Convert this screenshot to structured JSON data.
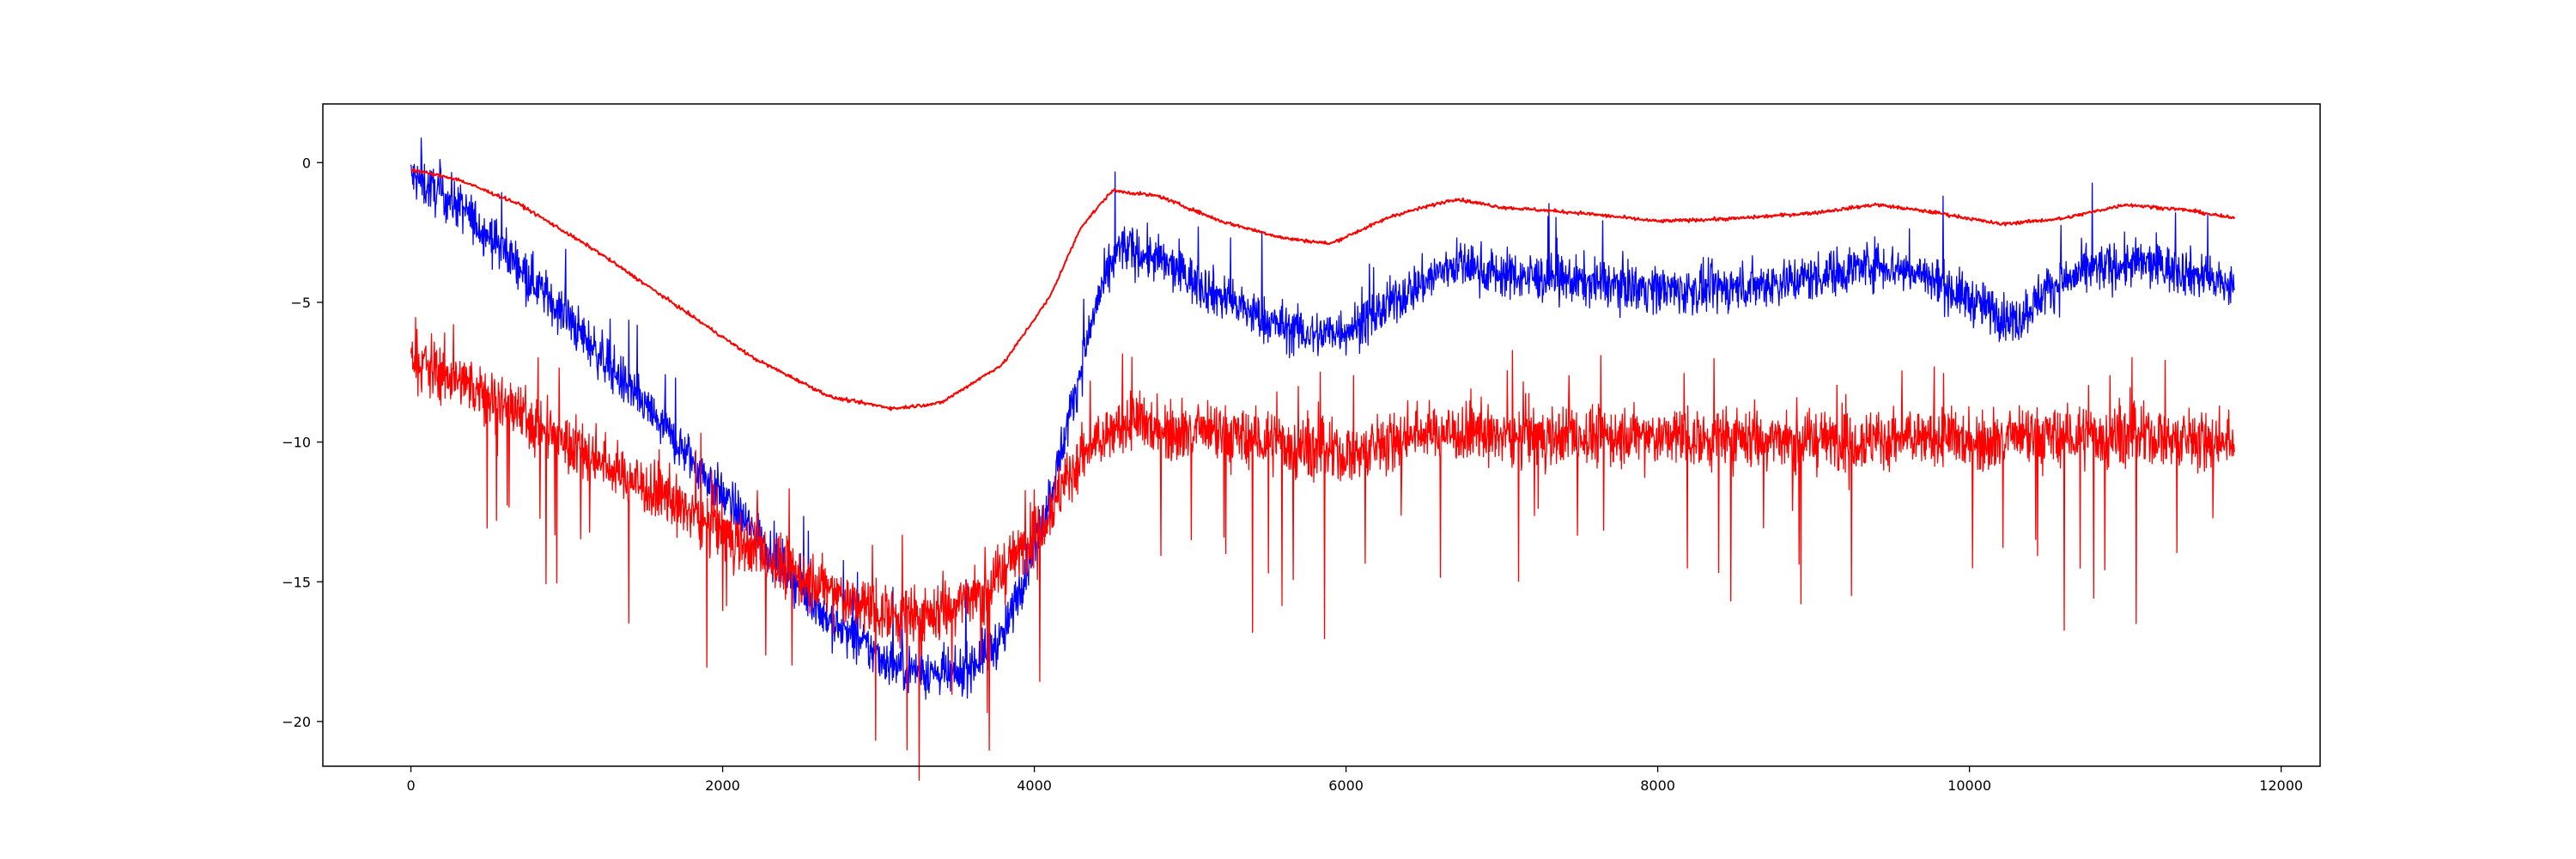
{
  "chart_data": {
    "type": "line",
    "title": "",
    "xlabel": "",
    "ylabel": "",
    "xlim": [
      -565,
      12250
    ],
    "ylim": [
      -21.6,
      2.1
    ],
    "x_ticks": [
      {
        "value": 0,
        "label": "0"
      },
      {
        "value": 2000,
        "label": "2000"
      },
      {
        "value": 4000,
        "label": "4000"
      },
      {
        "value": 6000,
        "label": "6000"
      },
      {
        "value": 8000,
        "label": "8000"
      },
      {
        "value": 10000,
        "label": "10000"
      },
      {
        "value": 12000,
        "label": "12000"
      }
    ],
    "y_ticks": [
      {
        "value": 0,
        "label": "0"
      },
      {
        "value": -5,
        "label": "−5"
      },
      {
        "value": -10,
        "label": "−10"
      },
      {
        "value": -15,
        "label": "−15"
      },
      {
        "value": -20,
        "label": "−20"
      }
    ],
    "grid": false,
    "x_count": 11700,
    "series": [
      {
        "color": "#0000ff",
        "noise_amplitude": 1.1,
        "x": [
          0,
          300,
          700,
          1200,
          1700,
          2200,
          2700,
          3100,
          3500,
          3800,
          4100,
          4400,
          4550,
          4800,
          5200,
          5500,
          5800,
          6100,
          6400,
          6700,
          7000,
          7400,
          7800,
          8200,
          8600,
          9000,
          9400,
          9700,
          10000,
          10300,
          10500,
          10800,
          11100,
          11400,
          11700
        ],
        "values": [
          -0.5,
          -1.5,
          -3.7,
          -6.8,
          -10.0,
          -13.2,
          -16.5,
          -18.0,
          -18.4,
          -17.0,
          -12.0,
          -5.0,
          -3.0,
          -3.5,
          -4.8,
          -5.7,
          -6.2,
          -5.8,
          -4.6,
          -3.6,
          -4.0,
          -4.2,
          -4.4,
          -4.6,
          -4.4,
          -4.1,
          -3.6,
          -4.0,
          -4.9,
          -5.7,
          -4.5,
          -3.8,
          -3.6,
          -3.9,
          -4.5
        ]
      },
      {
        "color": "#ff0000",
        "noise_amplitude": 1.4,
        "x": [
          0,
          500,
          1000,
          1500,
          2000,
          2500,
          2900,
          3300,
          3700,
          4000,
          4300,
          4600,
          5000,
          5500,
          6000,
          6500,
          7000,
          8000,
          9000,
          10000,
          11000,
          11700
        ],
        "values": [
          -7.0,
          -8.3,
          -10.0,
          -11.6,
          -13.2,
          -14.8,
          -15.9,
          -16.3,
          -15.2,
          -13.3,
          -10.5,
          -9.3,
          -9.6,
          -10.0,
          -10.5,
          -9.6,
          -9.8,
          -9.8,
          -9.9,
          -9.9,
          -9.8,
          -10.0
        ]
      },
      {
        "color": "#ff0000",
        "noise_amplitude": 0.08,
        "x": [
          0,
          300,
          700,
          1200,
          1700,
          2200,
          2700,
          3100,
          3400,
          3800,
          4100,
          4300,
          4500,
          4800,
          5200,
          5600,
          5900,
          6300,
          6700,
          7000,
          7500,
          8000,
          8500,
          9000,
          9400,
          9800,
          10200,
          10600,
          11000,
          11400,
          11700
        ],
        "values": [
          -0.25,
          -0.6,
          -1.5,
          -3.2,
          -5.1,
          -7.0,
          -8.4,
          -8.8,
          -8.6,
          -7.2,
          -4.8,
          -2.3,
          -1.0,
          -1.2,
          -2.1,
          -2.7,
          -2.9,
          -1.9,
          -1.3,
          -1.6,
          -1.8,
          -2.1,
          -2.0,
          -1.8,
          -1.5,
          -1.8,
          -2.2,
          -2.0,
          -1.5,
          -1.7,
          -2.0
        ]
      }
    ]
  }
}
